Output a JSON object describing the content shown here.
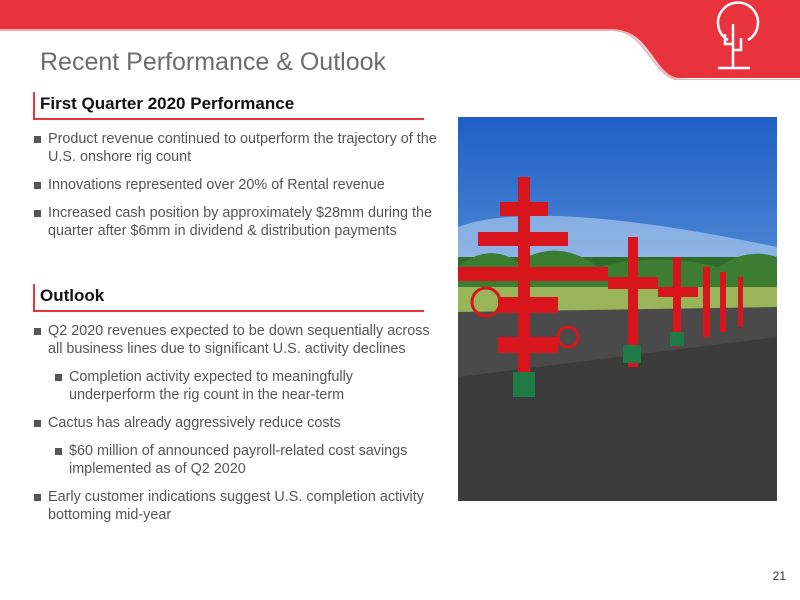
{
  "title": "Recent Performance & Outlook",
  "sections": [
    {
      "heading": "First Quarter 2020 Performance",
      "bullets": [
        {
          "text": "Product revenue continued to outperform the trajectory of the U.S. onshore rig count"
        },
        {
          "text": "Innovations represented over 20% of Rental revenue"
        },
        {
          "text": "Increased cash position by approximately $28mm during the quarter after $6mm in dividend & distribution payments"
        }
      ]
    },
    {
      "heading": "Outlook",
      "bullets": [
        {
          "text": "Q2 2020 revenues expected to be down sequentially across all business lines due to significant U.S. activity declines",
          "sub": [
            "Completion activity expected to meaningfully underperform the rig count in the near-term"
          ]
        },
        {
          "text": "Cactus has already aggressively reduce costs",
          "sub": [
            "$60 million of announced payroll-related cost savings implemented as of Q2 2020"
          ]
        },
        {
          "text": "Early customer indications suggest U.S. completion activity bottoming mid-year"
        }
      ]
    }
  ],
  "page_number": "21"
}
